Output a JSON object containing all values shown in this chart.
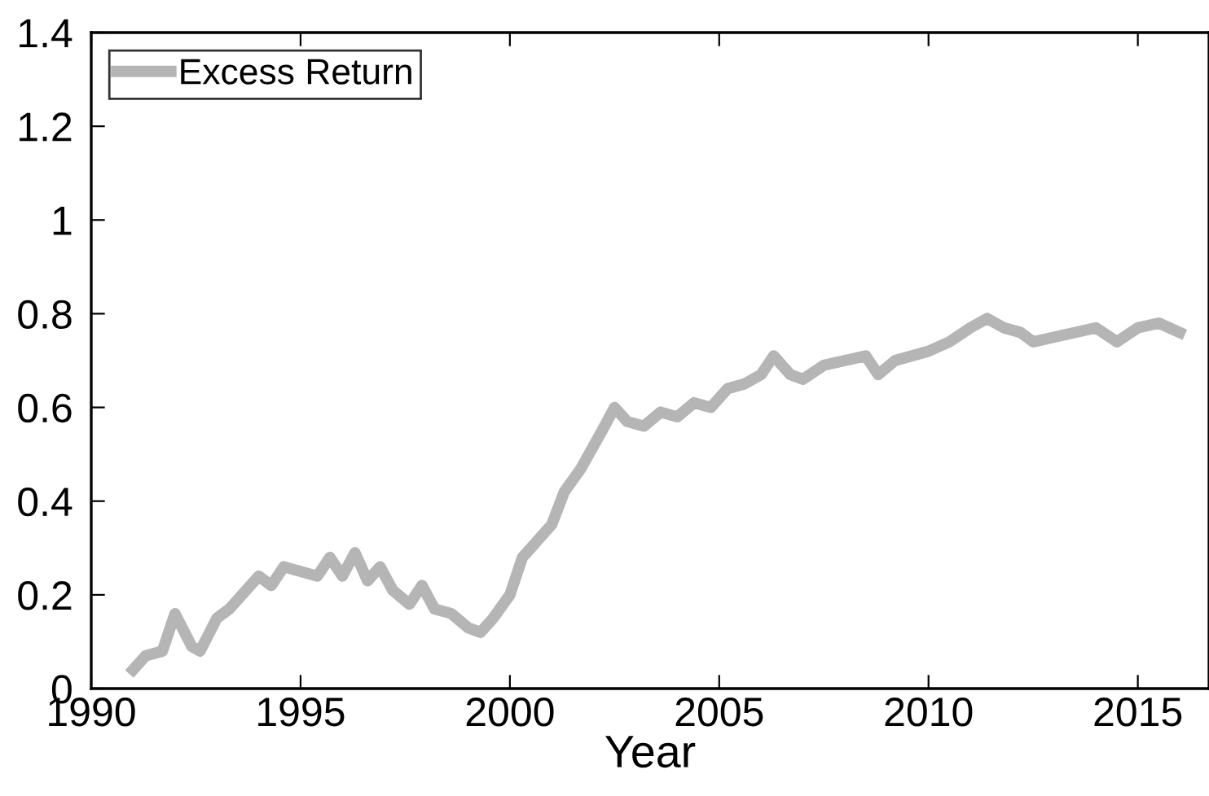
{
  "chart_data": {
    "type": "line",
    "xlabel": "Year",
    "xlim": [
      1990,
      2016.7
    ],
    "xticks": [
      1990,
      1995,
      2000,
      2005,
      2010,
      2015
    ],
    "ylim": [
      0,
      1.4
    ],
    "yticks": [
      0,
      0.2,
      0.4,
      0.6,
      0.8,
      1,
      1.2,
      1.4
    ],
    "grid": false,
    "legend": "top left",
    "marker": "none",
    "line_style": "solid",
    "x": [
      1991.0,
      1991.3,
      1991.7,
      1992.0,
      1992.4,
      1992.6,
      1993.0,
      1993.3,
      1993.6,
      1994.0,
      1994.3,
      1994.6,
      1995.0,
      1995.4,
      1995.7,
      1996.0,
      1996.3,
      1996.6,
      1996.9,
      1997.2,
      1997.6,
      1997.9,
      1998.2,
      1998.6,
      1999.0,
      1999.3,
      1999.6,
      2000.0,
      2000.3,
      2000.6,
      2001.0,
      2001.3,
      2001.7,
      2002.2,
      2002.5,
      2002.8,
      2003.2,
      2003.6,
      2004.0,
      2004.4,
      2004.8,
      2005.2,
      2005.6,
      2006.0,
      2006.3,
      2006.7,
      2007.0,
      2007.5,
      2008.0,
      2008.5,
      2008.8,
      2009.2,
      2009.6,
      2010.0,
      2010.5,
      2011.0,
      2011.4,
      2011.8,
      2012.2,
      2012.5,
      2013.0,
      2013.5,
      2014.0,
      2014.5,
      2015.0,
      2015.5,
      2016.0
    ],
    "series": [
      {
        "name": "Excess Return",
        "color": "#b5b5b5",
        "values": [
          0.04,
          0.07,
          0.08,
          0.16,
          0.09,
          0.08,
          0.15,
          0.17,
          0.2,
          0.24,
          0.22,
          0.26,
          0.25,
          0.24,
          0.28,
          0.24,
          0.29,
          0.23,
          0.26,
          0.21,
          0.18,
          0.22,
          0.17,
          0.16,
          0.13,
          0.12,
          0.15,
          0.2,
          0.28,
          0.31,
          0.35,
          0.42,
          0.47,
          0.55,
          0.6,
          0.57,
          0.56,
          0.59,
          0.58,
          0.61,
          0.6,
          0.64,
          0.65,
          0.67,
          0.71,
          0.67,
          0.66,
          0.69,
          0.7,
          0.71,
          0.67,
          0.7,
          0.71,
          0.72,
          0.74,
          0.77,
          0.79,
          0.77,
          0.76,
          0.74,
          0.75,
          0.76,
          0.77,
          0.74,
          0.77,
          0.78,
          0.76
        ]
      }
    ]
  }
}
